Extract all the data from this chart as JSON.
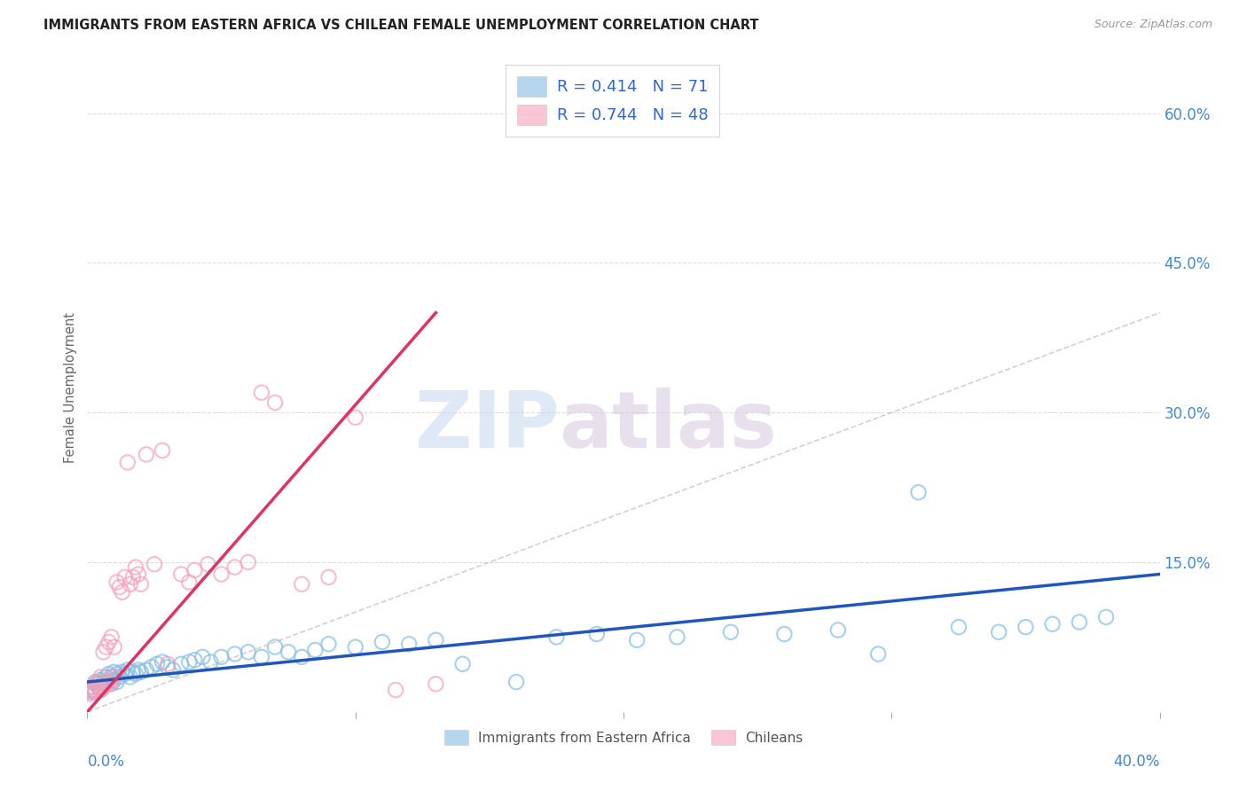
{
  "title": "IMMIGRANTS FROM EASTERN AFRICA VS CHILEAN FEMALE UNEMPLOYMENT CORRELATION CHART",
  "source": "Source: ZipAtlas.com",
  "ylabel": "Female Unemployment",
  "yaxis_ticks": [
    0.0,
    0.15,
    0.3,
    0.45,
    0.6
  ],
  "yaxis_labels": [
    "",
    "15.0%",
    "30.0%",
    "45.0%",
    "60.0%"
  ],
  "xlim": [
    0.0,
    0.4
  ],
  "ylim": [
    0.0,
    0.65
  ],
  "legend1_label": "R = 0.414   N = 71",
  "legend2_label": "R = 0.744   N = 48",
  "legend_bottom_label1": "Immigrants from Eastern Africa",
  "legend_bottom_label2": "Chileans",
  "blue_color": "#85bce0",
  "pink_color": "#f4a0b8",
  "trend_blue": "#2255bb",
  "trend_pink": "#dd3366",
  "blue_scatter_x": [
    0.001,
    0.002,
    0.002,
    0.003,
    0.003,
    0.004,
    0.004,
    0.005,
    0.005,
    0.006,
    0.006,
    0.007,
    0.007,
    0.008,
    0.008,
    0.009,
    0.009,
    0.01,
    0.01,
    0.011,
    0.011,
    0.012,
    0.013,
    0.014,
    0.015,
    0.016,
    0.017,
    0.018,
    0.019,
    0.02,
    0.022,
    0.024,
    0.026,
    0.028,
    0.03,
    0.032,
    0.035,
    0.038,
    0.04,
    0.043,
    0.046,
    0.05,
    0.055,
    0.06,
    0.065,
    0.07,
    0.075,
    0.08,
    0.085,
    0.09,
    0.1,
    0.11,
    0.12,
    0.13,
    0.14,
    0.16,
    0.175,
    0.19,
    0.205,
    0.22,
    0.24,
    0.26,
    0.28,
    0.295,
    0.31,
    0.325,
    0.34,
    0.35,
    0.36,
    0.37,
    0.38
  ],
  "blue_scatter_y": [
    0.02,
    0.022,
    0.025,
    0.02,
    0.03,
    0.025,
    0.028,
    0.022,
    0.032,
    0.025,
    0.03,
    0.028,
    0.035,
    0.03,
    0.038,
    0.028,
    0.035,
    0.032,
    0.04,
    0.03,
    0.038,
    0.035,
    0.04,
    0.038,
    0.042,
    0.035,
    0.04,
    0.038,
    0.042,
    0.04,
    0.042,
    0.045,
    0.048,
    0.05,
    0.045,
    0.042,
    0.048,
    0.05,
    0.052,
    0.055,
    0.05,
    0.055,
    0.058,
    0.06,
    0.055,
    0.065,
    0.06,
    0.055,
    0.062,
    0.068,
    0.065,
    0.07,
    0.068,
    0.072,
    0.048,
    0.03,
    0.075,
    0.078,
    0.072,
    0.075,
    0.08,
    0.078,
    0.082,
    0.058,
    0.22,
    0.085,
    0.08,
    0.085,
    0.088,
    0.09,
    0.095
  ],
  "pink_scatter_x": [
    0.001,
    0.001,
    0.002,
    0.002,
    0.003,
    0.003,
    0.004,
    0.004,
    0.005,
    0.005,
    0.006,
    0.006,
    0.007,
    0.007,
    0.008,
    0.008,
    0.009,
    0.009,
    0.01,
    0.01,
    0.011,
    0.012,
    0.013,
    0.014,
    0.015,
    0.016,
    0.017,
    0.018,
    0.019,
    0.02,
    0.022,
    0.025,
    0.028,
    0.03,
    0.035,
    0.038,
    0.04,
    0.045,
    0.05,
    0.055,
    0.06,
    0.065,
    0.07,
    0.08,
    0.09,
    0.1,
    0.115,
    0.13
  ],
  "pink_scatter_y": [
    0.018,
    0.022,
    0.02,
    0.025,
    0.022,
    0.028,
    0.025,
    0.03,
    0.022,
    0.035,
    0.025,
    0.06,
    0.03,
    0.065,
    0.028,
    0.07,
    0.03,
    0.075,
    0.035,
    0.065,
    0.13,
    0.125,
    0.12,
    0.135,
    0.25,
    0.128,
    0.135,
    0.145,
    0.138,
    0.128,
    0.258,
    0.148,
    0.262,
    0.048,
    0.138,
    0.13,
    0.142,
    0.148,
    0.138,
    0.145,
    0.15,
    0.32,
    0.31,
    0.128,
    0.135,
    0.295,
    0.022,
    0.028
  ],
  "pink_trend_x0": 0.0,
  "pink_trend_y0": 0.0,
  "pink_trend_x1": 0.13,
  "pink_trend_y1": 0.4,
  "blue_trend_x0": 0.0,
  "blue_trend_y0": 0.03,
  "blue_trend_x1": 0.4,
  "blue_trend_y1": 0.138
}
